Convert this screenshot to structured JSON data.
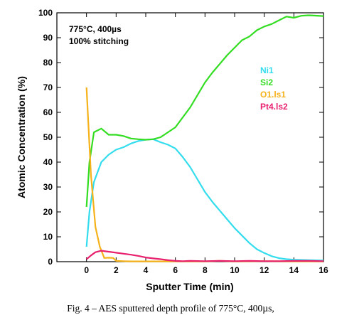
{
  "chart_data": {
    "type": "line",
    "xlabel": "Sputter Time (min)",
    "ylabel": "Atomic Concentration (%)",
    "xlim": [
      -2,
      16
    ],
    "ylim": [
      0,
      100
    ],
    "x_ticks": [
      "0",
      "2",
      "4",
      "6",
      "8",
      "10",
      "12",
      "14",
      "16"
    ],
    "y_ticks": [
      "0",
      "10",
      "20",
      "30",
      "40",
      "50",
      "60",
      "70",
      "80",
      "90",
      "100"
    ],
    "annotations": [
      "775°C, 400µs",
      "100% stitching"
    ],
    "legend_position": "right",
    "series": [
      {
        "name": "Ni1",
        "color": "#33ddee",
        "points": [
          [
            0,
            6
          ],
          [
            0.2,
            20
          ],
          [
            0.5,
            32
          ],
          [
            1,
            40
          ],
          [
            1.5,
            43
          ],
          [
            2,
            45
          ],
          [
            2.5,
            46
          ],
          [
            3,
            47.5
          ],
          [
            3.5,
            48.5
          ],
          [
            4,
            49
          ],
          [
            4.5,
            49.2
          ],
          [
            5,
            48
          ],
          [
            5.5,
            47
          ],
          [
            6,
            45.5
          ],
          [
            6.5,
            42
          ],
          [
            7,
            38
          ],
          [
            7.5,
            33
          ],
          [
            8,
            28
          ],
          [
            8.5,
            24
          ],
          [
            9,
            20.5
          ],
          [
            9.5,
            17
          ],
          [
            10,
            13.5
          ],
          [
            10.5,
            10.5
          ],
          [
            11,
            7.5
          ],
          [
            11.5,
            5
          ],
          [
            12,
            3.5
          ],
          [
            12.5,
            2.2
          ],
          [
            13,
            1.4
          ],
          [
            13.5,
            1
          ],
          [
            14,
            0.8
          ],
          [
            15,
            0.6
          ],
          [
            16,
            0.5
          ]
        ]
      },
      {
        "name": "Si2",
        "color": "#33dd22",
        "points": [
          [
            0,
            22
          ],
          [
            0.2,
            40
          ],
          [
            0.5,
            52
          ],
          [
            1,
            53.5
          ],
          [
            1.5,
            51
          ],
          [
            2,
            51
          ],
          [
            2.5,
            50.5
          ],
          [
            3,
            49.5
          ],
          [
            3.5,
            49.2
          ],
          [
            4,
            49
          ],
          [
            4.5,
            49.2
          ],
          [
            5,
            50
          ],
          [
            5.5,
            52
          ],
          [
            6,
            54
          ],
          [
            6.5,
            58
          ],
          [
            7,
            62
          ],
          [
            7.5,
            67
          ],
          [
            8,
            72
          ],
          [
            8.5,
            76
          ],
          [
            9,
            79.5
          ],
          [
            9.5,
            83
          ],
          [
            10,
            86
          ],
          [
            10.5,
            89
          ],
          [
            11,
            90.5
          ],
          [
            11.5,
            93
          ],
          [
            12,
            94.5
          ],
          [
            12.5,
            95.5
          ],
          [
            13,
            97
          ],
          [
            13.5,
            98.5
          ],
          [
            14,
            98
          ],
          [
            14.5,
            98.8
          ],
          [
            15,
            99
          ],
          [
            16,
            98.7
          ]
        ]
      },
      {
        "name": "O1.ls1",
        "color": "#f5b21a",
        "points": [
          [
            0,
            70
          ],
          [
            0.3,
            35
          ],
          [
            0.6,
            14
          ],
          [
            0.9,
            6
          ],
          [
            1.2,
            1.5
          ],
          [
            1.5,
            1.6
          ],
          [
            1.8,
            1.5
          ],
          [
            2,
            0.3
          ],
          [
            2.5,
            0.2
          ],
          [
            3,
            0.1
          ],
          [
            4,
            0.1
          ],
          [
            6,
            0.1
          ],
          [
            8,
            0.1
          ],
          [
            9,
            0.3
          ],
          [
            10,
            0.1
          ],
          [
            12,
            0.2
          ],
          [
            14,
            0.1
          ],
          [
            16,
            0.1
          ]
        ]
      },
      {
        "name": "Pt4.ls2",
        "color": "#e8206e",
        "points": [
          [
            0,
            1
          ],
          [
            0.3,
            2.5
          ],
          [
            0.6,
            3.8
          ],
          [
            1,
            4.4
          ],
          [
            1.5,
            4
          ],
          [
            2,
            3.6
          ],
          [
            2.5,
            3.2
          ],
          [
            3,
            2.8
          ],
          [
            3.5,
            2.3
          ],
          [
            4,
            1.7
          ],
          [
            4.5,
            1.3
          ],
          [
            5,
            1
          ],
          [
            5.5,
            0.6
          ],
          [
            6,
            0.3
          ],
          [
            6.5,
            0.2
          ],
          [
            7,
            0.3
          ],
          [
            8,
            0.2
          ],
          [
            9,
            0.3
          ],
          [
            10,
            0.2
          ],
          [
            11,
            0.3
          ],
          [
            12,
            0.2
          ],
          [
            13,
            0.2
          ],
          [
            14,
            0.3
          ],
          [
            15,
            0.3
          ],
          [
            16,
            0.2
          ]
        ]
      }
    ]
  },
  "caption": "Fig. 4 – AES sputtered depth profile of 775°C, 400µs,"
}
